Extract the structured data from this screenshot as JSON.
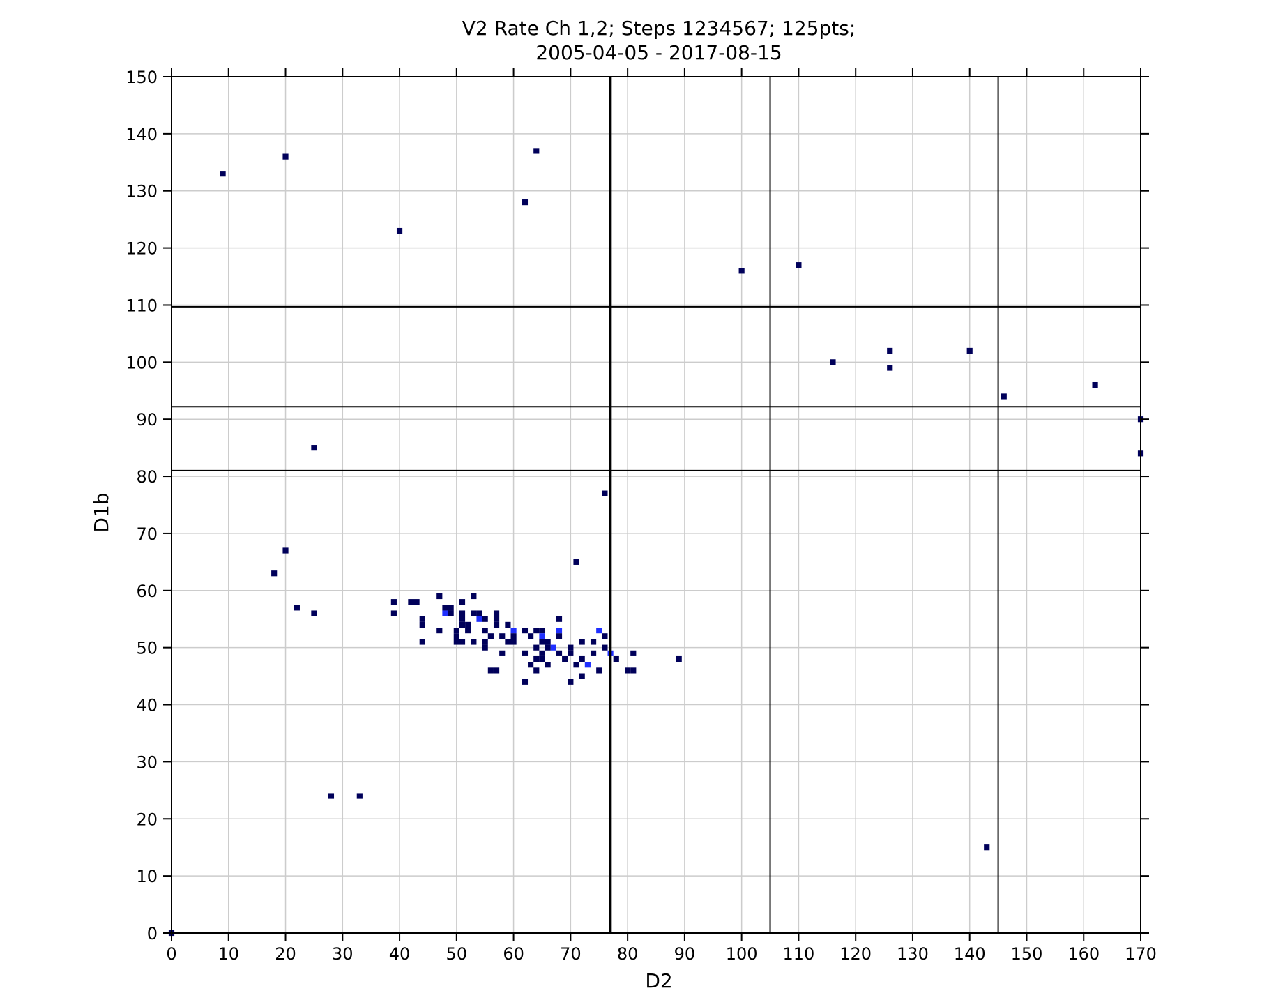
{
  "chart_data": {
    "type": "heatmap",
    "title_line1": "V2 Rate Ch 1,2; Steps 1234567; 125pts;",
    "title_line2": "2005-04-05 - 2017-08-15",
    "xlabel": "D2",
    "ylabel": "D1b",
    "xlim": [
      0,
      170
    ],
    "ylim": [
      0,
      150
    ],
    "xticks": [
      0,
      10,
      20,
      30,
      40,
      50,
      60,
      70,
      80,
      90,
      100,
      110,
      120,
      130,
      140,
      150,
      160,
      170
    ],
    "yticks": [
      0,
      10,
      20,
      30,
      40,
      50,
      60,
      70,
      80,
      90,
      100,
      110,
      120,
      130,
      140,
      150
    ],
    "grid": true,
    "vertical_lines": [
      77,
      105,
      145
    ],
    "horizontal_lines": [
      81,
      92.2,
      109.7
    ],
    "colors": {
      "low": "#00005a",
      "high": "#1f2fff",
      "grid": "#cccccc",
      "lines": "#000000"
    },
    "points": [
      {
        "x": 9,
        "y": 133,
        "level": 1
      },
      {
        "x": 20,
        "y": 136,
        "level": 1
      },
      {
        "x": 64,
        "y": 137,
        "level": 1
      },
      {
        "x": 62,
        "y": 128,
        "level": 1
      },
      {
        "x": 40,
        "y": 123,
        "level": 1
      },
      {
        "x": 100,
        "y": 116,
        "level": 1
      },
      {
        "x": 110,
        "y": 117,
        "level": 1
      },
      {
        "x": 116,
        "y": 100,
        "level": 1
      },
      {
        "x": 126,
        "y": 102,
        "level": 1
      },
      {
        "x": 126,
        "y": 99,
        "level": 1
      },
      {
        "x": 140,
        "y": 102,
        "level": 1
      },
      {
        "x": 146,
        "y": 94,
        "level": 1
      },
      {
        "x": 162,
        "y": 96,
        "level": 1
      },
      {
        "x": 170,
        "y": 90,
        "level": 1
      },
      {
        "x": 170,
        "y": 84,
        "level": 1
      },
      {
        "x": 25,
        "y": 85,
        "level": 1
      },
      {
        "x": 76,
        "y": 77,
        "level": 1
      },
      {
        "x": 20,
        "y": 67,
        "level": 1
      },
      {
        "x": 71,
        "y": 65,
        "level": 1
      },
      {
        "x": 18,
        "y": 63,
        "level": 1
      },
      {
        "x": 22,
        "y": 57,
        "level": 1
      },
      {
        "x": 25,
        "y": 56,
        "level": 1
      },
      {
        "x": 39,
        "y": 58,
        "level": 1
      },
      {
        "x": 39,
        "y": 56,
        "level": 1
      },
      {
        "x": 42,
        "y": 58,
        "level": 1
      },
      {
        "x": 43,
        "y": 58,
        "level": 1
      },
      {
        "x": 44,
        "y": 55,
        "level": 1
      },
      {
        "x": 44,
        "y": 54,
        "level": 1
      },
      {
        "x": 44,
        "y": 51,
        "level": 1
      },
      {
        "x": 47,
        "y": 59,
        "level": 1
      },
      {
        "x": 47,
        "y": 53,
        "level": 1
      },
      {
        "x": 48,
        "y": 57,
        "level": 1
      },
      {
        "x": 48,
        "y": 56,
        "level": 2
      },
      {
        "x": 49,
        "y": 57,
        "level": 1
      },
      {
        "x": 49,
        "y": 56,
        "level": 1
      },
      {
        "x": 50,
        "y": 53,
        "level": 1
      },
      {
        "x": 50,
        "y": 52,
        "level": 1
      },
      {
        "x": 50,
        "y": 51,
        "level": 1
      },
      {
        "x": 51,
        "y": 58,
        "level": 1
      },
      {
        "x": 51,
        "y": 56,
        "level": 1
      },
      {
        "x": 51,
        "y": 55,
        "level": 1
      },
      {
        "x": 51,
        "y": 54,
        "level": 1
      },
      {
        "x": 51,
        "y": 51,
        "level": 1
      },
      {
        "x": 52,
        "y": 54,
        "level": 1
      },
      {
        "x": 52,
        "y": 53,
        "level": 1
      },
      {
        "x": 53,
        "y": 59,
        "level": 1
      },
      {
        "x": 53,
        "y": 56,
        "level": 1
      },
      {
        "x": 53,
        "y": 51,
        "level": 1
      },
      {
        "x": 54,
        "y": 56,
        "level": 1
      },
      {
        "x": 54,
        "y": 55,
        "level": 2
      },
      {
        "x": 55,
        "y": 55,
        "level": 1
      },
      {
        "x": 55,
        "y": 53,
        "level": 1
      },
      {
        "x": 55,
        "y": 51,
        "level": 1
      },
      {
        "x": 55,
        "y": 50,
        "level": 1
      },
      {
        "x": 56,
        "y": 52,
        "level": 1
      },
      {
        "x": 56,
        "y": 46,
        "level": 1
      },
      {
        "x": 57,
        "y": 56,
        "level": 1
      },
      {
        "x": 57,
        "y": 55,
        "level": 1
      },
      {
        "x": 57,
        "y": 54,
        "level": 1
      },
      {
        "x": 57,
        "y": 46,
        "level": 1
      },
      {
        "x": 58,
        "y": 52,
        "level": 1
      },
      {
        "x": 58,
        "y": 49,
        "level": 1
      },
      {
        "x": 59,
        "y": 54,
        "level": 1
      },
      {
        "x": 59,
        "y": 51,
        "level": 1
      },
      {
        "x": 60,
        "y": 53,
        "level": 2
      },
      {
        "x": 60,
        "y": 52,
        "level": 1
      },
      {
        "x": 60,
        "y": 51,
        "level": 1
      },
      {
        "x": 62,
        "y": 53,
        "level": 1
      },
      {
        "x": 62,
        "y": 49,
        "level": 1
      },
      {
        "x": 62,
        "y": 44,
        "level": 1
      },
      {
        "x": 63,
        "y": 52,
        "level": 1
      },
      {
        "x": 63,
        "y": 47,
        "level": 1
      },
      {
        "x": 64,
        "y": 53,
        "level": 1
      },
      {
        "x": 64,
        "y": 50,
        "level": 1
      },
      {
        "x": 64,
        "y": 48,
        "level": 1
      },
      {
        "x": 64,
        "y": 46,
        "level": 1
      },
      {
        "x": 65,
        "y": 53,
        "level": 1
      },
      {
        "x": 65,
        "y": 52,
        "level": 2
      },
      {
        "x": 65,
        "y": 51,
        "level": 1
      },
      {
        "x": 65,
        "y": 49,
        "level": 1
      },
      {
        "x": 65,
        "y": 48,
        "level": 1
      },
      {
        "x": 66,
        "y": 51,
        "level": 1
      },
      {
        "x": 66,
        "y": 50,
        "level": 1
      },
      {
        "x": 66,
        "y": 47,
        "level": 1
      },
      {
        "x": 67,
        "y": 50,
        "level": 2
      },
      {
        "x": 68,
        "y": 55,
        "level": 1
      },
      {
        "x": 68,
        "y": 53,
        "level": 2
      },
      {
        "x": 68,
        "y": 52,
        "level": 1
      },
      {
        "x": 68,
        "y": 49,
        "level": 1
      },
      {
        "x": 69,
        "y": 48,
        "level": 1
      },
      {
        "x": 70,
        "y": 50,
        "level": 1
      },
      {
        "x": 70,
        "y": 49,
        "level": 1
      },
      {
        "x": 70,
        "y": 44,
        "level": 1
      },
      {
        "x": 71,
        "y": 47,
        "level": 1
      },
      {
        "x": 72,
        "y": 51,
        "level": 1
      },
      {
        "x": 72,
        "y": 48,
        "level": 1
      },
      {
        "x": 72,
        "y": 45,
        "level": 1
      },
      {
        "x": 73,
        "y": 47,
        "level": 2
      },
      {
        "x": 74,
        "y": 51,
        "level": 1
      },
      {
        "x": 74,
        "y": 49,
        "level": 1
      },
      {
        "x": 75,
        "y": 53,
        "level": 2
      },
      {
        "x": 75,
        "y": 46,
        "level": 1
      },
      {
        "x": 76,
        "y": 52,
        "level": 1
      },
      {
        "x": 76,
        "y": 50,
        "level": 1
      },
      {
        "x": 77,
        "y": 49,
        "level": 2
      },
      {
        "x": 78,
        "y": 48,
        "level": 1
      },
      {
        "x": 80,
        "y": 46,
        "level": 1
      },
      {
        "x": 81,
        "y": 49,
        "level": 1
      },
      {
        "x": 81,
        "y": 46,
        "level": 1
      },
      {
        "x": 89,
        "y": 48,
        "level": 1
      },
      {
        "x": 28,
        "y": 24,
        "level": 1
      },
      {
        "x": 33,
        "y": 24,
        "level": 1
      },
      {
        "x": 143,
        "y": 15,
        "level": 1
      },
      {
        "x": 0,
        "y": 0,
        "level": 1
      }
    ]
  }
}
